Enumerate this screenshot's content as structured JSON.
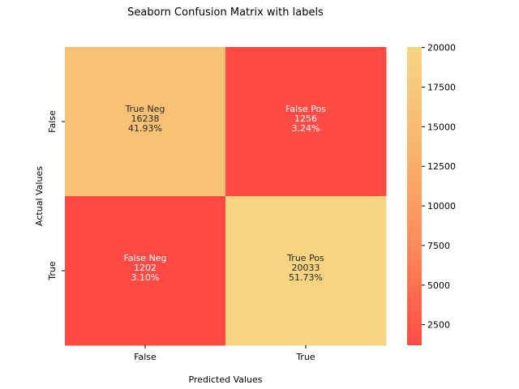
{
  "chart_data": {
    "type": "heatmap",
    "title": "Seaborn Confusion Matrix with labels",
    "xlabel": "Predicted Values",
    "ylabel": "Actual Values",
    "x_categories": [
      "False",
      "True"
    ],
    "y_categories": [
      "False",
      "True"
    ],
    "values": [
      [
        16238,
        1256
      ],
      [
        1202,
        20033
      ]
    ],
    "annotations": [
      [
        [
          "True Neg",
          "16238",
          "41.93%"
        ],
        [
          "False Pos",
          "1256",
          "3.24%"
        ]
      ],
      [
        [
          "False Neg",
          "1202",
          "3.10%"
        ],
        [
          "True Pos",
          "20033",
          "51.73%"
        ]
      ]
    ],
    "colorbar": {
      "ticks": [
        "2500",
        "5000",
        "7500",
        "10000",
        "12500",
        "15000",
        "17500",
        "20000"
      ],
      "tick_values": [
        2500,
        5000,
        7500,
        10000,
        12500,
        15000,
        17500,
        20000
      ],
      "range": [
        1202,
        20033
      ]
    },
    "colormap": [
      "#ff4a43",
      "#ff8a5a",
      "#f8b56e",
      "#f7d580"
    ],
    "annotation_colors": {
      "dark": "#262626",
      "light": "#ffffff"
    }
  }
}
